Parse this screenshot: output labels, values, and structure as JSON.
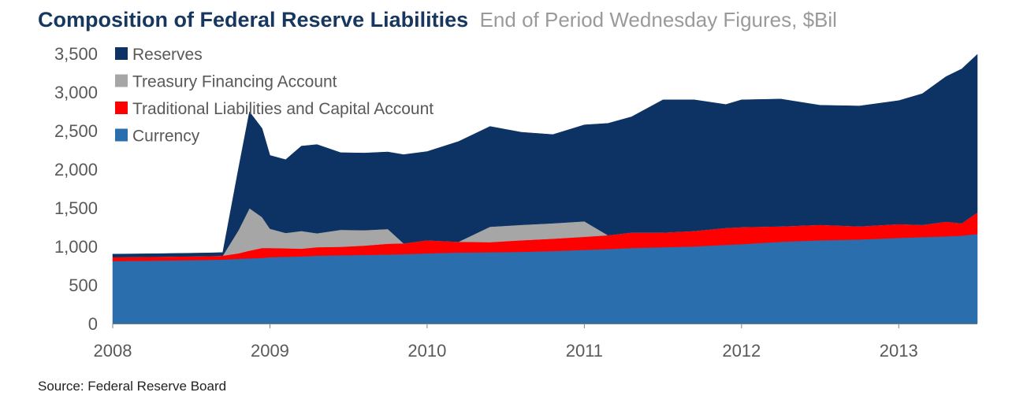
{
  "title": "Composition of Federal Reserve Liabilities",
  "subtitle": "End of Period Wednesday Figures, $Bil",
  "source": "Source:  Federal Reserve Board",
  "chart_data": {
    "type": "area",
    "stacked": true,
    "title": "Composition of Federal Reserve Liabilities",
    "subtitle": "End of Period Wednesday Figures, $Bil",
    "ylim": [
      0,
      3500
    ],
    "xlim": [
      2008.0,
      2013.5
    ],
    "y_ticks": [
      0,
      500,
      1000,
      1500,
      2000,
      2500,
      3000,
      3500
    ],
    "y_tick_labels": [
      "0",
      "500",
      "1,000",
      "1,500",
      "2,000",
      "2,500",
      "3,000",
      "3,500"
    ],
    "x_ticks": [
      2008,
      2009,
      2010,
      2011,
      2012,
      2013
    ],
    "x_tick_labels": [
      "2008",
      "2009",
      "2010",
      "2011",
      "2012",
      "2013"
    ],
    "grid": false,
    "legend_position": "top-left",
    "x": [
      2008.0,
      2008.25,
      2008.6,
      2008.7,
      2008.8,
      2008.87,
      2008.95,
      2009.0,
      2009.1,
      2009.2,
      2009.3,
      2009.45,
      2009.6,
      2009.75,
      2009.85,
      2010.0,
      2010.2,
      2010.4,
      2010.6,
      2010.8,
      2011.0,
      2011.15,
      2011.3,
      2011.5,
      2011.7,
      2011.9,
      2012.0,
      2012.25,
      2012.5,
      2012.75,
      2013.0,
      2013.15,
      2013.3,
      2013.4,
      2013.5
    ],
    "series": [
      {
        "name": "Currency",
        "color": "#2a6ead",
        "values": [
          810,
          815,
          825,
          830,
          840,
          845,
          850,
          860,
          865,
          870,
          880,
          885,
          890,
          895,
          900,
          910,
          920,
          925,
          930,
          940,
          955,
          965,
          980,
          990,
          1000,
          1020,
          1030,
          1060,
          1080,
          1090,
          1110,
          1120,
          1130,
          1140,
          1160
        ]
      },
      {
        "name": "Traditional Liabilities and Capital Account",
        "color": "#ff0000",
        "values": [
          50,
          50,
          50,
          50,
          70,
          100,
          130,
          120,
          110,
          100,
          110,
          110,
          120,
          140,
          140,
          170,
          140,
          130,
          150,
          160,
          170,
          180,
          200,
          190,
          200,
          220,
          220,
          200,
          200,
          170,
          180,
          160,
          190,
          160,
          280
        ]
      },
      {
        "name": "Treasury Financing Account",
        "color": "#a6a6a6",
        "values": [
          0,
          0,
          0,
          0,
          300,
          550,
          400,
          250,
          200,
          230,
          180,
          220,
          200,
          190,
          0,
          0,
          0,
          200,
          200,
          200,
          200,
          0,
          0,
          0,
          0,
          0,
          0,
          0,
          0,
          0,
          0,
          0,
          0,
          0,
          0
        ]
      },
      {
        "name": "Reserves",
        "color": "#0d3264",
        "values": [
          40,
          40,
          40,
          40,
          800,
          1250,
          1150,
          950,
          950,
          1100,
          1150,
          1000,
          1000,
          1000,
          1150,
          1150,
          1300,
          1300,
          1200,
          1150,
          1250,
          1450,
          1500,
          1720,
          1700,
          1600,
          1650,
          1650,
          1550,
          1560,
          1600,
          1700,
          1880,
          2000,
          2050
        ]
      }
    ]
  }
}
